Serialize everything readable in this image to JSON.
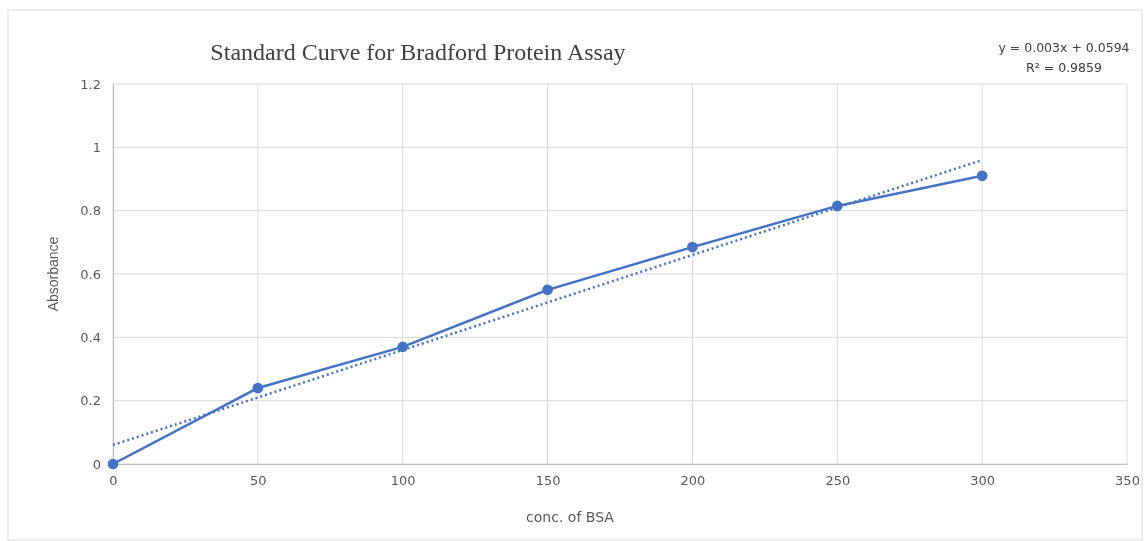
{
  "chart_data": {
    "type": "line",
    "title": "Standard Curve for Bradford Protein Assay",
    "xlabel": "conc. of BSA",
    "ylabel": "Absorbance",
    "annotations": [
      "y = 0.003x + 0.0594",
      "R² = 0.9859"
    ],
    "xlim": [
      0,
      350
    ],
    "xticks": [
      0,
      50,
      100,
      150,
      200,
      250,
      300,
      350
    ],
    "ylim": [
      0,
      1.2
    ],
    "yticks": [
      0,
      0.2,
      0.4,
      0.6,
      0.8,
      1,
      1.2
    ],
    "grid": true,
    "series": [
      {
        "type": "line",
        "color": "#4472c4",
        "marker": "circle",
        "line_style": "solid",
        "x": [
          0,
          50,
          100,
          150,
          200,
          250,
          300
        ],
        "values": [
          0,
          0.24,
          0.37,
          0.55,
          0.685,
          0.815,
          0.91
        ]
      },
      {
        "type": "line",
        "color": "#4472c4",
        "marker": "none",
        "line_style": "dotted",
        "x": [
          0,
          300
        ],
        "values": [
          0.06,
          0.96
        ]
      }
    ]
  }
}
